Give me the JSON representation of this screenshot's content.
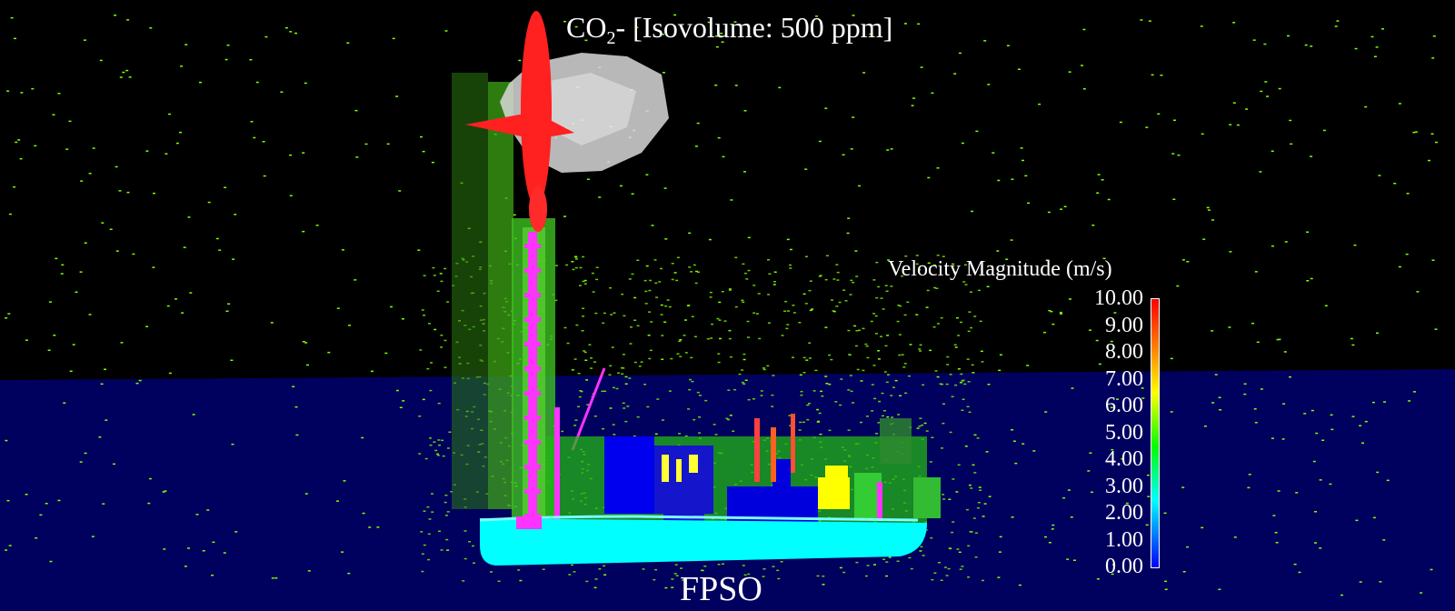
{
  "title": {
    "prefix": "CO",
    "subscript": "2",
    "suffix": "- [Isovolume: 500 ppm]"
  },
  "caption": "FPSO",
  "legend": {
    "title": "Velocity Magnitude (m/s)",
    "ticks": [
      "10.00",
      "9.00",
      "8.00",
      "7.00",
      "6.00",
      "5.00",
      "4.00",
      "3.00",
      "2.00",
      "1.00",
      "0.00"
    ]
  },
  "colors": {
    "sky": "#000000",
    "sea": "#00005e",
    "hull": "#00ffff",
    "plume": "#ff2020",
    "isovolume": "#d8d8d8",
    "vectors": "#7fff00",
    "flare": "#ff33ff"
  }
}
